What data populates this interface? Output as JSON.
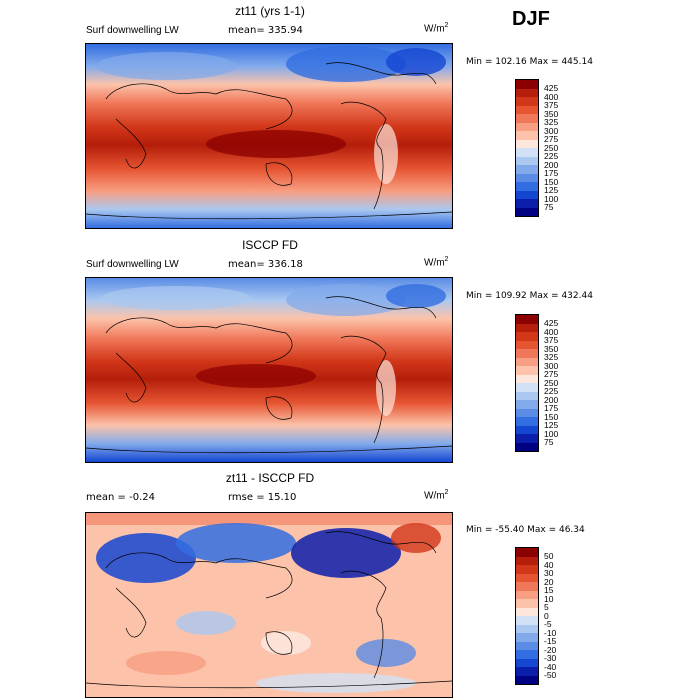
{
  "season": "DJF",
  "panels": [
    {
      "title": "zt11 (yrs 1-1)",
      "left_label": "Surf downwelling LW",
      "stat1": "mean=  335.94",
      "stat2": "",
      "units": "W/m",
      "units_sup": "2",
      "minmax": "Min = 102.16  Max = 445.14",
      "levels": [
        "425",
        "400",
        "375",
        "350",
        "325",
        "300",
        "275",
        "250",
        "225",
        "200",
        "175",
        "150",
        "125",
        "100",
        "75"
      ],
      "colors": [
        "#8b0000",
        "#b41e0a",
        "#d23719",
        "#e65532",
        "#f0785a",
        "#f89e82",
        "#fcc3aa",
        "#fde6dc",
        "#d2e1f5",
        "#aac8f0",
        "#82aaeb",
        "#5a8ce6",
        "#326ee1",
        "#1446d2",
        "#0a1eaa",
        "#000082"
      ]
    },
    {
      "title": "ISCCP FD",
      "left_label": "Surf downwelling LW",
      "stat1": "mean=  336.18",
      "stat2": "",
      "units": "W/m",
      "units_sup": "2",
      "minmax": "Min = 109.92  Max = 432.44",
      "levels": [
        "425",
        "400",
        "375",
        "350",
        "325",
        "300",
        "275",
        "250",
        "225",
        "200",
        "175",
        "150",
        "125",
        "100",
        "75"
      ],
      "colors": [
        "#8b0000",
        "#b41e0a",
        "#d23719",
        "#e65532",
        "#f0785a",
        "#f89e82",
        "#fcc3aa",
        "#fde6dc",
        "#d2e1f5",
        "#aac8f0",
        "#82aaeb",
        "#5a8ce6",
        "#326ee1",
        "#1446d2",
        "#0a1eaa",
        "#000082"
      ]
    },
    {
      "title": "zt11 - ISCCP FD",
      "left_label": "mean =   -0.24",
      "stat1": "",
      "stat2": "rmse =  15.10",
      "units": "W/m",
      "units_sup": "2",
      "minmax": "Min = -55.40  Max =  46.34",
      "levels": [
        "50",
        "40",
        "30",
        "20",
        "15",
        "10",
        "5",
        "0",
        "-5",
        "-10",
        "-15",
        "-20",
        "-30",
        "-40",
        "-50"
      ],
      "colors": [
        "#8b0000",
        "#b41e0a",
        "#d23719",
        "#e65532",
        "#f0785a",
        "#f89e82",
        "#fcc3aa",
        "#fde6dc",
        "#d2e1f5",
        "#aac8f0",
        "#82aaeb",
        "#5a8ce6",
        "#326ee1",
        "#1446d2",
        "#0a1eaa",
        "#000082"
      ]
    }
  ]
}
